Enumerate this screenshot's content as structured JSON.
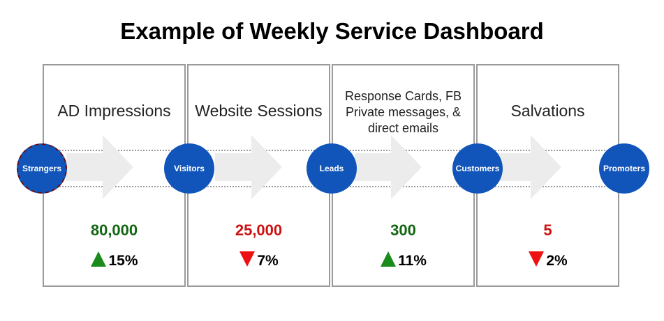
{
  "title": "Example of Weekly Service Dashboard",
  "stages": [
    {
      "label": "AD Impressions",
      "value": "80,000",
      "change": "15%",
      "direction": "up",
      "value_color": "#116611"
    },
    {
      "label": "Website Sessions",
      "value": "25,000",
      "change": "7%",
      "direction": "down",
      "value_color": "#cc1111"
    },
    {
      "label": "Response Cards, FB Private messages, & direct emails",
      "value": "300",
      "change": "11%",
      "direction": "up",
      "value_color": "#116611"
    },
    {
      "label": "Salvations",
      "value": "5",
      "change": "2%",
      "direction": "down",
      "value_color": "#cc1111"
    }
  ],
  "nodes": [
    "Strangers",
    "Visitors",
    "Leads",
    "Customers",
    "Promoters"
  ],
  "colors": {
    "node": "#1155bb",
    "up_arrow": "#1a8a1a",
    "down_arrow": "#ee1111",
    "border": "#9a9a9a",
    "chevron": "#ececec"
  }
}
